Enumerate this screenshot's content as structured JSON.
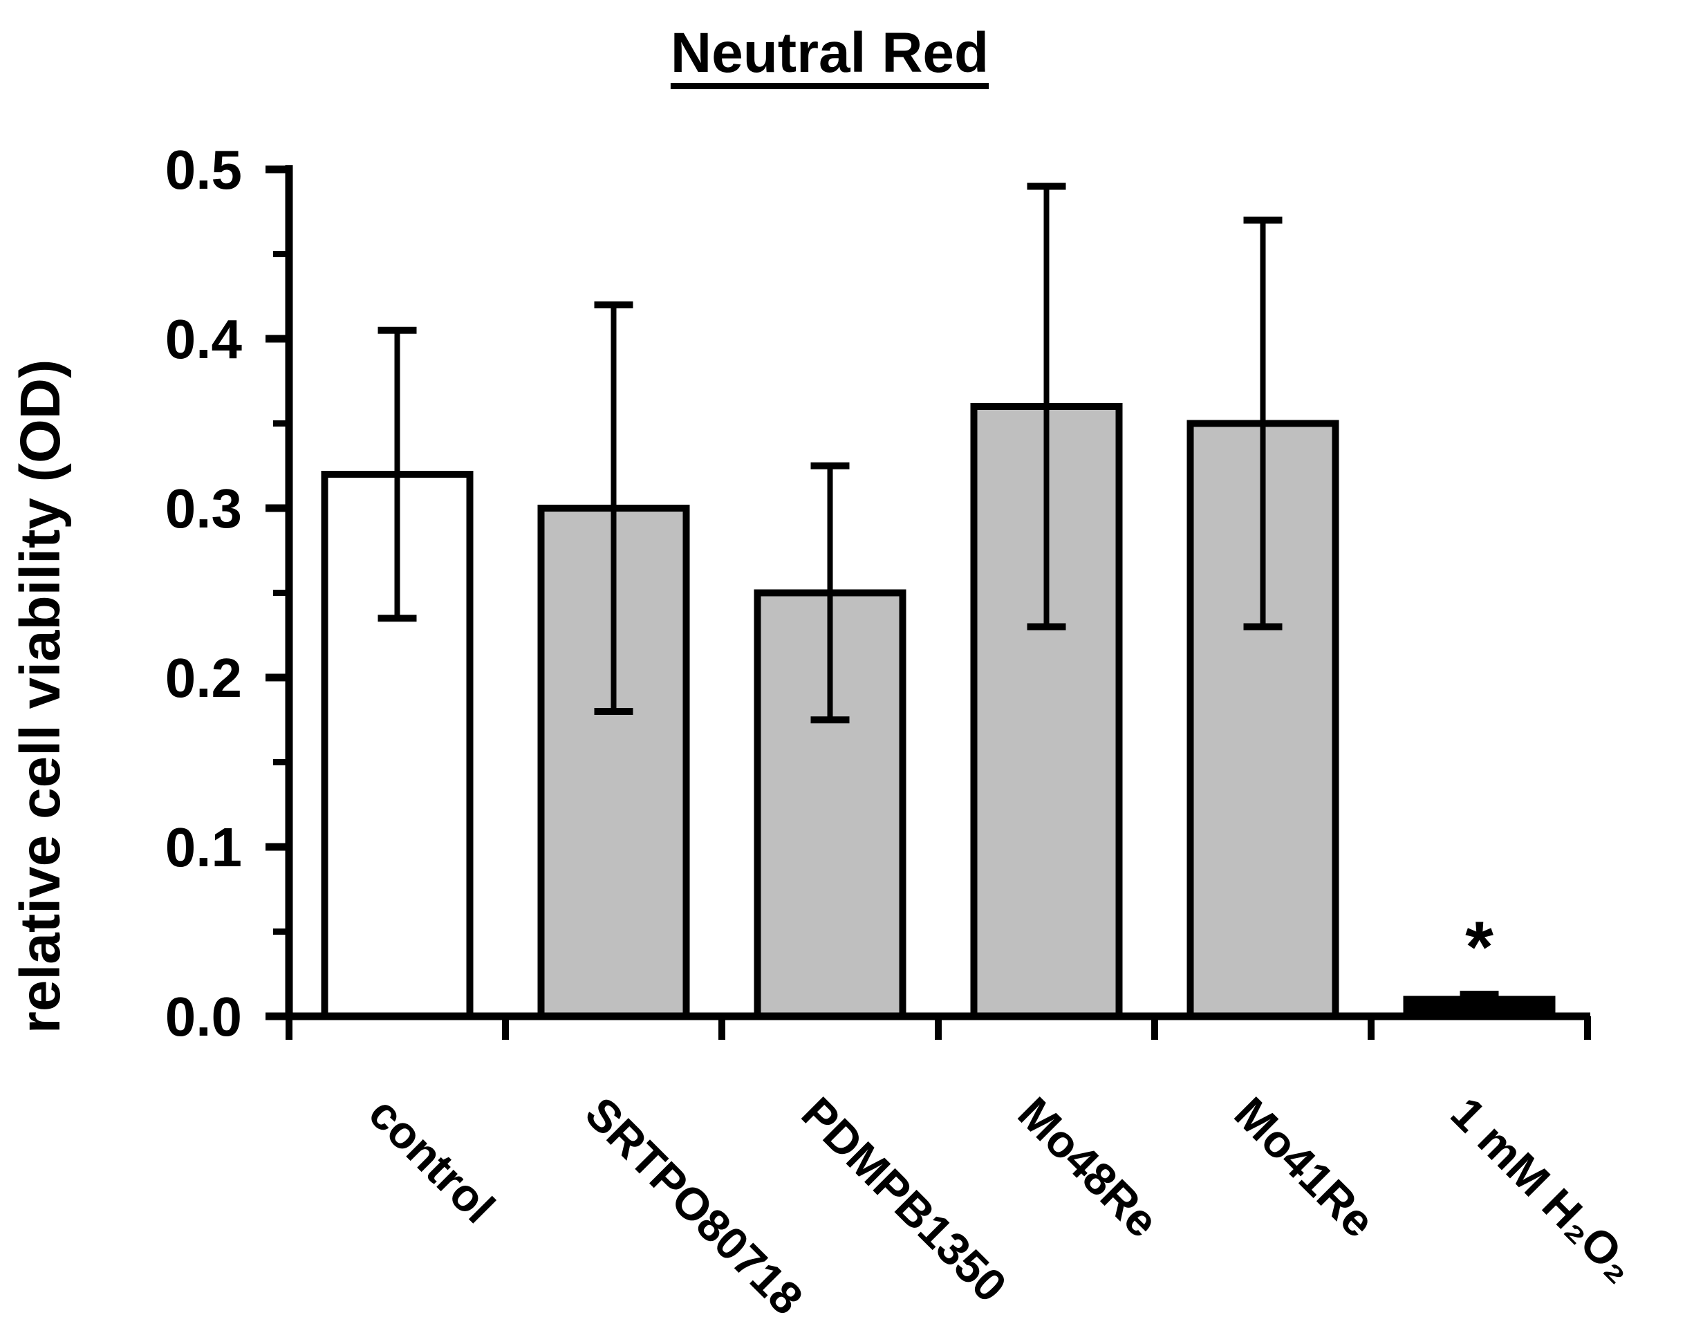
{
  "figure": {
    "background_color": "#FFFFFF",
    "axis_color": "#000000"
  },
  "chart_data": {
    "type": "bar",
    "title": "Neutral Red",
    "title_underlined": true,
    "xlabel": "",
    "ylabel": "relative cell viability (OD)",
    "ylim": [
      0,
      0.5
    ],
    "ytick_interval": 0.1,
    "yminor_tick_interval": 0.05,
    "ytick_labels": [
      "0.0",
      "0.1",
      "0.2",
      "0.3",
      "0.4",
      "0.5"
    ],
    "grid": "off",
    "legend": "none",
    "x_tick_label_rotation_deg": 45,
    "categories": [
      "control",
      "SRTPO80718",
      "PDMPB1350",
      "Mo48Re",
      "Mo41Re",
      "1 mM H₂O₂"
    ],
    "values": [
      0.32,
      0.3,
      0.25,
      0.36,
      0.35,
      0.01
    ],
    "errors": [
      0.085,
      0.12,
      0.075,
      0.13,
      0.12,
      0.003
    ],
    "error_bar_style": "plus-minus-caps",
    "bar_fill_colors": [
      "#FFFFFF",
      "#BFBFBF",
      "#BFBFBF",
      "#BFBFBF",
      "#BFBFBF",
      "#000000"
    ],
    "bar_edge_color": "#000000",
    "annotations": [
      {
        "text": "*",
        "category": "1 mM H₂O₂",
        "position": "above-bar"
      }
    ]
  }
}
